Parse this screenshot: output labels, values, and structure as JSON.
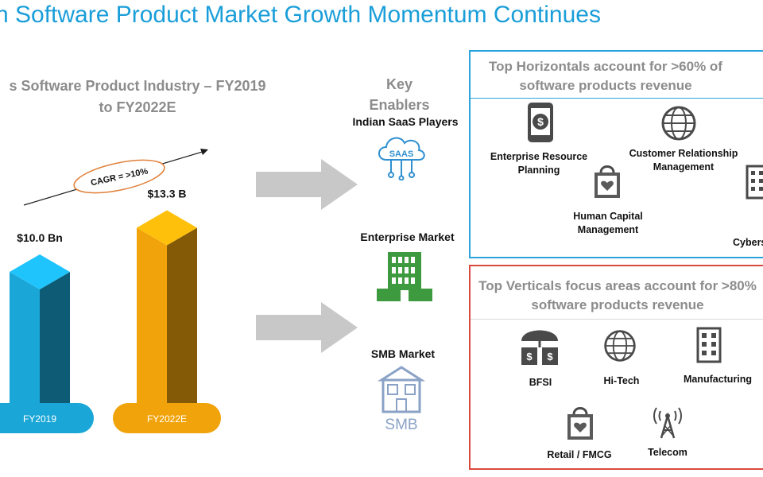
{
  "page_title": "n Software Product Market Growth Momentum Continues",
  "chart": {
    "title_line1": "s Software Product Industry – FY2019",
    "title_line2": "to FY2022E",
    "cagr": "CAGR = >10%"
  },
  "chart_data": {
    "type": "bar",
    "categories": [
      "FY2019",
      "FY2022E"
    ],
    "values": [
      10.0,
      13.3
    ],
    "value_labels": [
      "$10.0 Bn",
      "$13.3 B"
    ],
    "colors": [
      "#1aa6d6",
      "#f0a30a"
    ],
    "annotation": "CAGR = >10%"
  },
  "enablers": {
    "title_line1": "Key",
    "title_line2": "Enablers",
    "items": [
      {
        "label": "Indian SaaS Players",
        "icon": "saas-cloud-icon",
        "icon_text": "SAAS"
      },
      {
        "label": "Enterprise Market",
        "icon": "office-building-icon"
      },
      {
        "label": "SMB Market",
        "icon": "storefront-icon",
        "icon_text": "SMB"
      }
    ]
  },
  "horizontals": {
    "head_line1": "Top Horizontals account for >60% of",
    "head_line2": "software products revenue",
    "items": [
      {
        "line1": "Enterprise Resource",
        "line2": "Planning",
        "icon": "mobile-dollar-icon"
      },
      {
        "line1": "Customer Relationship",
        "line2": "Management",
        "icon": "globe-network-icon"
      },
      {
        "line1": "Human Capital",
        "line2": "Management",
        "icon": "shopping-bag-heart-icon"
      },
      {
        "line1": "Cybers",
        "icon": "building-icon"
      }
    ]
  },
  "verticals": {
    "head_line1": "Top Verticals focus areas account for >80%",
    "head_line2": "software products revenue",
    "items": [
      {
        "label": "BFSI",
        "icon": "umbrella-money-icon",
        "icon_text": "$"
      },
      {
        "label": "Hi-Tech",
        "icon": "globe-network-icon"
      },
      {
        "label": "Manufacturing",
        "icon": "factory-building-icon"
      },
      {
        "label": "Retail / FMCG",
        "icon": "shopping-bag-heart-icon"
      },
      {
        "label": "Telecom",
        "icon": "antenna-tower-icon"
      }
    ]
  },
  "colors": {
    "title_blue": "#1a9ed9",
    "box_blue": "#2ba3dc",
    "box_red": "#d94a3c",
    "arrow_gray": "#c8c8c8",
    "building_green": "#3e9a3e"
  }
}
